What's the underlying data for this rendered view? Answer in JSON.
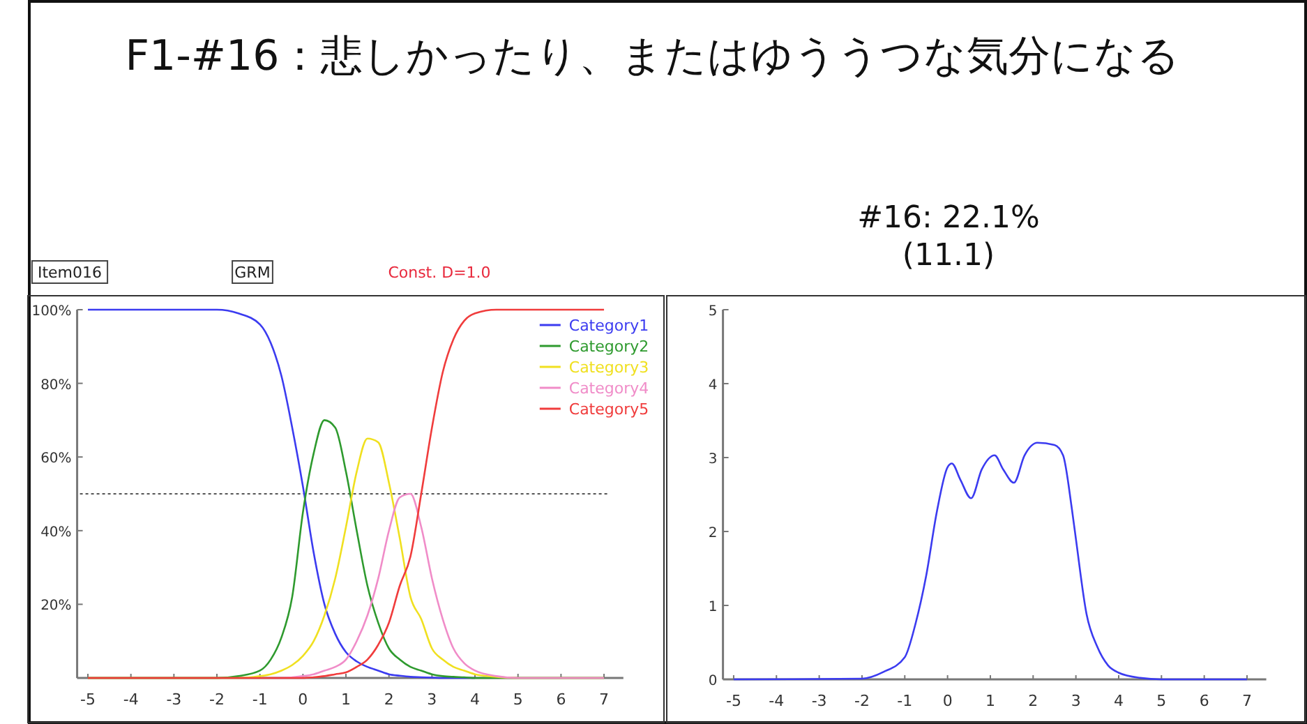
{
  "chart_data": [
    {
      "type": "line",
      "title": "F1-#16：悲しかったり、またはゆううつな気分になる",
      "annotations": [
        "Item016",
        "GRM",
        "Const. D=1.0"
      ],
      "x": [
        -5,
        -2,
        -1.5,
        -1,
        -0.75,
        -0.5,
        -0.25,
        0,
        0.25,
        0.5,
        0.75,
        1,
        1.25,
        1.5,
        1.75,
        2,
        2.25,
        2.5,
        2.75,
        3,
        3.25,
        3.5,
        3.75,
        4,
        4.5,
        5,
        7
      ],
      "series": [
        {
          "name": "Category1",
          "color": "#3b3bf0",
          "values": [
            100,
            100,
            99,
            96,
            91,
            82,
            68,
            52,
            34,
            20,
            12,
            7,
            4.5,
            3,
            2,
            1,
            0.6,
            0.3,
            0.2,
            0.1,
            0,
            0,
            0,
            0,
            null,
            null,
            null
          ]
        },
        {
          "name": "Category2",
          "color": "#2e9a2e",
          "values": [
            0,
            0,
            0.5,
            2,
            5,
            11,
            22,
            45,
            61,
            70,
            68,
            56,
            40,
            25,
            15,
            8,
            5,
            3,
            2,
            1,
            0.5,
            0.3,
            0.2,
            0,
            0,
            0,
            0
          ]
        },
        {
          "name": "Category3",
          "color": "#f0e020",
          "values": [
            0,
            0,
            0,
            0.5,
            1,
            2,
            3.5,
            6,
            10,
            17,
            27,
            41,
            56,
            65,
            64,
            53,
            38,
            22,
            16,
            8,
            5,
            3,
            2,
            1,
            0.3,
            0,
            0
          ]
        },
        {
          "name": "Category4",
          "color": "#f08cc8",
          "values": [
            null,
            null,
            null,
            null,
            0,
            0,
            0.2,
            0.5,
            1,
            2,
            3,
            5,
            10,
            17,
            27,
            40,
            49,
            50,
            41,
            27,
            16,
            8,
            4,
            2,
            0.5,
            0,
            0
          ]
        },
        {
          "name": "Category5",
          "color": "#f03c3c",
          "values": [
            0,
            0,
            0,
            0,
            0,
            0,
            0,
            0,
            0.2,
            0.5,
            1,
            1.5,
            3,
            5,
            9,
            15,
            25,
            33,
            50,
            68,
            83,
            92,
            97,
            99,
            100,
            100,
            100
          ]
        }
      ],
      "xlim": [
        -5.25,
        7.45
      ],
      "xticks": [
        -5,
        -4,
        -3,
        -2,
        -1,
        0,
        1,
        2,
        3,
        4,
        5,
        6,
        7
      ],
      "ylim": [
        0,
        100
      ],
      "yticks": [
        {
          "value": 0,
          "label": null
        },
        {
          "value": 20,
          "label": "20%"
        },
        {
          "value": 40,
          "label": "40%"
        },
        {
          "value": 60,
          "label": "60%"
        },
        {
          "value": 80,
          "label": "80%"
        },
        {
          "value": 100,
          "label": "100%"
        }
      ],
      "ref_lines": [
        {
          "axis": "y",
          "value": 50,
          "color": "#555555",
          "line_style": "dotted"
        }
      ],
      "legend": "top right"
    },
    {
      "type": "line",
      "title": "#16: 22.1%",
      "subtitle": "(11.1)",
      "x": [
        -5,
        -2,
        -1.5,
        -1,
        -0.75,
        -0.5,
        -0.25,
        0,
        0.1,
        0.3,
        0.55,
        0.8,
        1.1,
        1.3,
        1.55,
        1.8,
        2.1,
        2.5,
        2.7,
        2.9,
        3,
        3.25,
        3.5,
        3.75,
        4,
        4.5,
        5,
        7
      ],
      "series": [
        {
          "color": "#3b3bf0",
          "values": [
            0,
            0.01,
            0.1,
            0.3,
            0.75,
            1.4,
            2.27,
            2.87,
            2.92,
            2.7,
            2.45,
            2.84,
            3.03,
            2.84,
            2.66,
            3.03,
            3.2,
            3.17,
            3.03,
            2.33,
            1.9,
            0.88,
            0.44,
            0.19,
            0.09,
            0.02,
            0,
            0
          ]
        }
      ],
      "xlim": [
        -5.25,
        7.45
      ],
      "xticks": [
        -5,
        -4,
        -3,
        -2,
        -1,
        0,
        1,
        2,
        3,
        4,
        5,
        6,
        7
      ],
      "ylim": [
        0,
        5
      ],
      "yticks": [
        0,
        1,
        2,
        3,
        4,
        5
      ]
    }
  ]
}
